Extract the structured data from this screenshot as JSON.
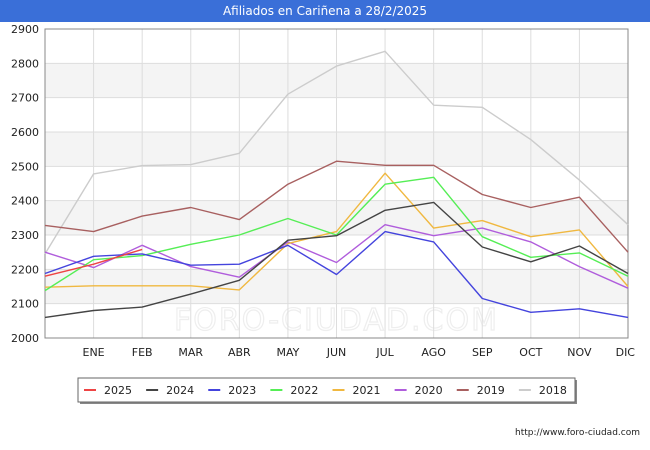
{
  "header": {
    "title": "Afiliados en Cariñena a 28/2/2025"
  },
  "footer": {
    "url": "http://www.foro-ciudad.com"
  },
  "watermark": "FORO-CIUDAD.COM",
  "chart_data": {
    "type": "line",
    "title": "Afiliados en Cariñena a 28/2/2025",
    "xlabel": "",
    "ylabel": "",
    "x": [
      "",
      "ENE",
      "FEB",
      "MAR",
      "ABR",
      "MAY",
      "JUN",
      "JUL",
      "AGO",
      "SEP",
      "OCT",
      "NOV",
      "DIC"
    ],
    "ylim": [
      2000,
      2900
    ],
    "yticks": [
      2000,
      2100,
      2200,
      2300,
      2400,
      2500,
      2600,
      2700,
      2800,
      2900
    ],
    "grid": true,
    "legend_position": "bottom",
    "series": [
      {
        "name": "2018",
        "color": "#cccccc",
        "values": [
          2245,
          2478,
          2502,
          2505,
          2538,
          2710,
          2792,
          2835,
          2678,
          2672,
          2578,
          2460,
          2330
        ]
      },
      {
        "name": "2019",
        "color": "#a86060",
        "values": [
          2328,
          2310,
          2355,
          2380,
          2345,
          2448,
          2515,
          2503,
          2503,
          2418,
          2380,
          2410,
          2250
        ]
      },
      {
        "name": "2020",
        "color": "#b05ddc",
        "values": [
          2250,
          2205,
          2270,
          2208,
          2177,
          2280,
          2220,
          2330,
          2298,
          2320,
          2280,
          2208,
          2145
        ]
      },
      {
        "name": "2021",
        "color": "#f0b840",
        "values": [
          2148,
          2152,
          2152,
          2152,
          2140,
          2275,
          2310,
          2480,
          2320,
          2342,
          2295,
          2315,
          2150
        ]
      },
      {
        "name": "2022",
        "color": "#55ee55",
        "values": [
          2138,
          2228,
          2240,
          2273,
          2300,
          2348,
          2300,
          2448,
          2468,
          2295,
          2235,
          2248,
          2180
        ]
      },
      {
        "name": "2023",
        "color": "#4444dd",
        "values": [
          2188,
          2238,
          2245,
          2212,
          2215,
          2270,
          2185,
          2310,
          2280,
          2115,
          2075,
          2085,
          2060
        ]
      },
      {
        "name": "2024",
        "color": "#444444",
        "values": [
          2060,
          2080,
          2090,
          2128,
          2168,
          2285,
          2298,
          2372,
          2395,
          2265,
          2222,
          2268,
          2188
        ]
      },
      {
        "name": "2025",
        "color": "#ee4444",
        "values": [
          2180,
          2215,
          2258,
          null,
          null,
          null,
          null,
          null,
          null,
          null,
          null,
          null,
          null
        ]
      }
    ],
    "legend_order": [
      "2025",
      "2024",
      "2023",
      "2022",
      "2021",
      "2020",
      "2019",
      "2018"
    ]
  }
}
